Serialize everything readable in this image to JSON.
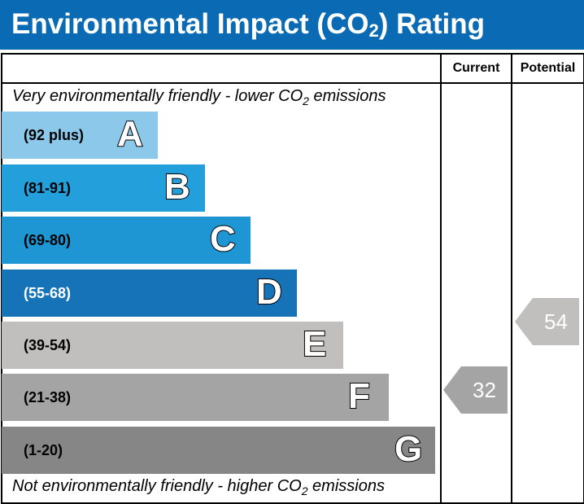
{
  "title_main": "Environmental Impact (CO",
  "title_sub": "2",
  "title_end": ") Rating",
  "columns": {
    "current": "Current",
    "potential": "Potential"
  },
  "caption_top": {
    "pre": "Very environmentally friendly - lower CO",
    "sub": "2",
    "post": " emissions"
  },
  "caption_bottom": {
    "pre": "Not environmentally friendly - higher CO",
    "sub": "2",
    "post": " emissions"
  },
  "colors": {
    "title_bar": "#0a6ab4"
  },
  "chart_data": {
    "type": "bar",
    "categories": [
      "A",
      "B",
      "C",
      "D",
      "E",
      "F",
      "G"
    ],
    "bands": [
      {
        "letter": "A",
        "range": "(92 plus)",
        "color": "#8cc8ea"
      },
      {
        "letter": "B",
        "range": "(81-91)",
        "color": "#23a0db"
      },
      {
        "letter": "C",
        "range": "(69-80)",
        "color": "#1d96d3"
      },
      {
        "letter": "D",
        "range": "(55-68)",
        "color": "#1673b8"
      },
      {
        "letter": "E",
        "range": "(39-54)",
        "color": "#c1bfbd"
      },
      {
        "letter": "F",
        "range": "(21-38)",
        "color": "#a5a4a4"
      },
      {
        "letter": "G",
        "range": "(1-20)",
        "color": "#868686"
      }
    ],
    "current": {
      "value": 32,
      "band": "F",
      "color": "#a5a4a4"
    },
    "potential": {
      "value": 54,
      "band": "E",
      "color": "#c1bfbd"
    }
  }
}
